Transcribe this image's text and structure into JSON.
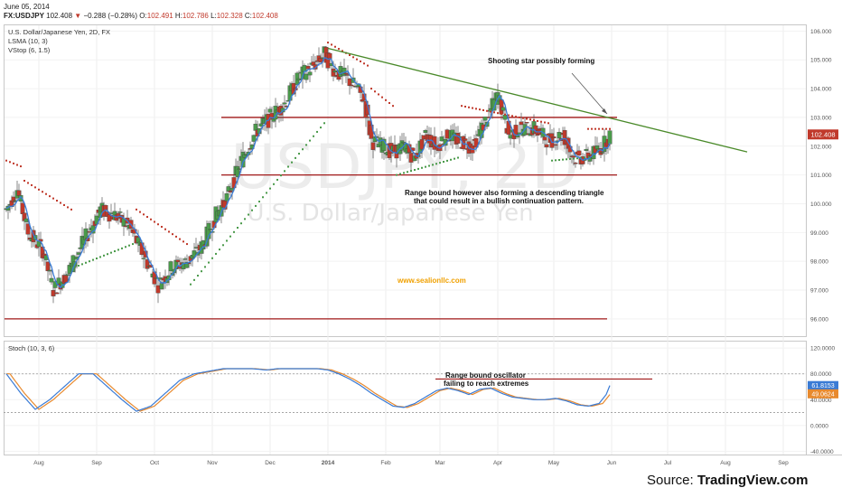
{
  "header": {
    "date": "June 05, 2014",
    "symbol": "FX:USDJPY",
    "last": "102.408",
    "change": "−0.288 (−0.28%)",
    "open_label": "O:",
    "open": "102.491",
    "high_label": "H:",
    "high": "102.786",
    "low_label": "L:",
    "low": "102.328",
    "close_label": "C:",
    "close": "102.408"
  },
  "legend": {
    "title": "U.S. Dollar/Japanese Yen, 2D, FX",
    "lsma": "LSMA (10, 3)",
    "vstop": "VStop (6, 1.5)",
    "stoch": "Stoch (10, 3, 6)"
  },
  "watermark": {
    "main": "USDJPY, 2D",
    "sub": "U.S. Dollar/Japanese Yen"
  },
  "annotations": {
    "shooting_star": "Shooting star possibly forming",
    "range_line1": "Range bound however also forming a descending triangle",
    "range_line2": "that could result in a bullish continuation pattern.",
    "site": "www.sealionllc.com",
    "osc_line1": "Range bound oscillator",
    "osc_line2": "failing to reach extremes"
  },
  "source": {
    "prefix": "Source: ",
    "brand": "TradingView.com"
  },
  "colors": {
    "up": "#4a9a4a",
    "down": "#c0392b",
    "lsma": "#3a7bd5",
    "hline": "#a01818",
    "trend": "#4a8a2a",
    "stoch_k": "#3a7bd5",
    "stoch_d": "#e88a2e",
    "site": "#f0a000",
    "price_badge": "#c0392b",
    "k_badge": "#3a7bd5",
    "d_badge": "#e88a2e"
  },
  "chart_data": {
    "type": "candlestick",
    "title": "U.S. Dollar/Japanese Yen, 2D, FX",
    "x_tick_labels": [
      "Aug",
      "Sep",
      "Oct",
      "Nov",
      "Dec",
      "2014",
      "Feb",
      "Mar",
      "Apr",
      "May",
      "Jun",
      "Jul",
      "Aug",
      "Sep"
    ],
    "x_tick_index": [
      18,
      50,
      82,
      114,
      146,
      178,
      210,
      240,
      272,
      303,
      335,
      366,
      398,
      430
    ],
    "price_axis": {
      "range": [
        95.4,
        106.2
      ],
      "ticks": [
        "106.000",
        "105.000",
        "104.000",
        "103.000",
        "102.000",
        "101.000",
        "100.000",
        "99.000",
        "98.000",
        "97.000",
        "96.000"
      ]
    },
    "stoch_axis": {
      "range": [
        -45,
        130
      ],
      "ticks": [
        "120.0000",
        "80.0000",
        "40.0000",
        "0.0000",
        "-40.0000"
      ]
    },
    "last_price_badge": "102.408",
    "stoch_k_badge": "61.8153",
    "stoch_d_badge": "49.0624",
    "horizontal_levels": [
      103.0,
      101.0,
      96.0
    ],
    "trendline": {
      "from": [
        178,
        105.4
      ],
      "to": [
        410,
        101.8
      ]
    },
    "stoch_level": 72,
    "price_waypoints": [
      [
        0,
        99.8
      ],
      [
        6,
        100.5
      ],
      [
        12,
        99.0
      ],
      [
        20,
        98.4
      ],
      [
        26,
        97.0
      ],
      [
        34,
        97.6
      ],
      [
        42,
        98.6
      ],
      [
        52,
        99.8
      ],
      [
        60,
        99.6
      ],
      [
        68,
        99.2
      ],
      [
        76,
        98.2
      ],
      [
        84,
        97.2
      ],
      [
        92,
        97.8
      ],
      [
        100,
        98.0
      ],
      [
        108,
        98.5
      ],
      [
        116,
        99.6
      ],
      [
        122,
        100.2
      ],
      [
        130,
        101.5
      ],
      [
        138,
        102.5
      ],
      [
        146,
        103.0
      ],
      [
        154,
        103.5
      ],
      [
        162,
        104.4
      ],
      [
        170,
        104.8
      ],
      [
        176,
        105.2
      ],
      [
        182,
        104.6
      ],
      [
        188,
        104.4
      ],
      [
        194,
        104.0
      ],
      [
        198,
        103.6
      ],
      [
        202,
        102.2
      ],
      [
        208,
        102.0
      ],
      [
        214,
        101.8
      ],
      [
        220,
        102.0
      ],
      [
        226,
        101.6
      ],
      [
        232,
        102.4
      ],
      [
        238,
        102.0
      ],
      [
        244,
        102.4
      ],
      [
        250,
        102.2
      ],
      [
        258,
        102.0
      ],
      [
        266,
        103.0
      ],
      [
        272,
        103.8
      ],
      [
        278,
        102.4
      ],
      [
        284,
        102.6
      ],
      [
        292,
        102.6
      ],
      [
        300,
        102.2
      ],
      [
        308,
        102.4
      ],
      [
        314,
        101.6
      ],
      [
        320,
        101.6
      ],
      [
        326,
        101.8
      ],
      [
        330,
        102.0
      ],
      [
        334,
        102.4
      ]
    ],
    "stoch_waypoints": [
      [
        0,
        80
      ],
      [
        8,
        50
      ],
      [
        16,
        25
      ],
      [
        24,
        40
      ],
      [
        32,
        60
      ],
      [
        40,
        80
      ],
      [
        48,
        80
      ],
      [
        56,
        60
      ],
      [
        64,
        40
      ],
      [
        72,
        22
      ],
      [
        80,
        30
      ],
      [
        88,
        50
      ],
      [
        96,
        70
      ],
      [
        104,
        80
      ],
      [
        112,
        84
      ],
      [
        120,
        88
      ],
      [
        128,
        88
      ],
      [
        136,
        88
      ],
      [
        144,
        86
      ],
      [
        150,
        88
      ],
      [
        158,
        88
      ],
      [
        166,
        88
      ],
      [
        172,
        88
      ],
      [
        178,
        86
      ],
      [
        184,
        80
      ],
      [
        190,
        72
      ],
      [
        196,
        62
      ],
      [
        202,
        50
      ],
      [
        208,
        40
      ],
      [
        214,
        30
      ],
      [
        220,
        28
      ],
      [
        226,
        34
      ],
      [
        232,
        44
      ],
      [
        238,
        54
      ],
      [
        244,
        58
      ],
      [
        250,
        54
      ],
      [
        256,
        48
      ],
      [
        262,
        56
      ],
      [
        268,
        58
      ],
      [
        274,
        50
      ],
      [
        280,
        44
      ],
      [
        286,
        42
      ],
      [
        292,
        40
      ],
      [
        298,
        40
      ],
      [
        304,
        42
      ],
      [
        310,
        38
      ],
      [
        316,
        32
      ],
      [
        322,
        30
      ],
      [
        328,
        34
      ],
      [
        332,
        48
      ],
      [
        334,
        62
      ]
    ],
    "volatility_stop": [
      {
        "from": 0,
        "to": 8,
        "start": 101.5,
        "end": 101.3,
        "color": "down"
      },
      {
        "from": 10,
        "to": 36,
        "start": 100.8,
        "end": 99.8,
        "color": "down"
      },
      {
        "from": 38,
        "to": 70,
        "start": 97.8,
        "end": 98.6,
        "color": "up"
      },
      {
        "from": 72,
        "to": 100,
        "start": 99.8,
        "end": 98.6,
        "color": "down"
      },
      {
        "from": 102,
        "to": 176,
        "start": 97.2,
        "end": 102.8,
        "color": "up"
      },
      {
        "from": 178,
        "to": 200,
        "start": 105.6,
        "end": 104.8,
        "color": "down"
      },
      {
        "from": 202,
        "to": 214,
        "start": 104.0,
        "end": 103.4,
        "color": "down"
      },
      {
        "from": 216,
        "to": 250,
        "start": 101.0,
        "end": 101.6,
        "color": "up"
      },
      {
        "from": 252,
        "to": 300,
        "start": 103.4,
        "end": 102.8,
        "color": "down"
      },
      {
        "from": 302,
        "to": 320,
        "start": 101.5,
        "end": 101.6,
        "color": "up"
      },
      {
        "from": 322,
        "to": 334,
        "start": 102.6,
        "end": 102.6,
        "color": "down"
      }
    ]
  }
}
